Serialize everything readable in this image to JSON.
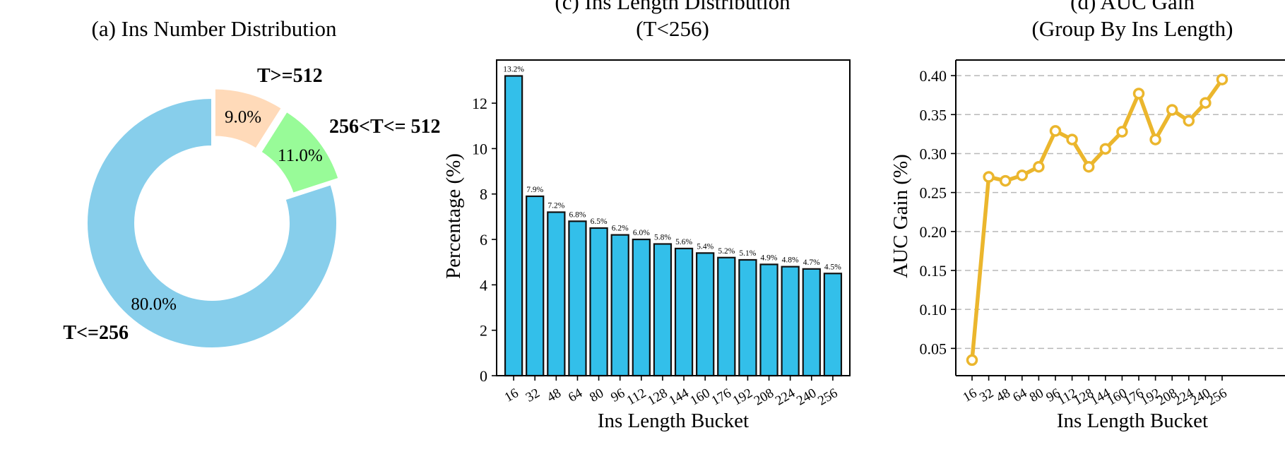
{
  "chart_data": [
    {
      "type": "pie",
      "title": "(a) Ins Number Distribution",
      "donut": true,
      "slices": [
        {
          "label": "T>=512",
          "value": 9.0,
          "pct_label": "9.0%",
          "color": "#FFDAB9"
        },
        {
          "label": "256<T<= 512",
          "value": 11.0,
          "pct_label": "11.0%",
          "color": "#98FB98"
        },
        {
          "label": "T<=256",
          "value": 80.0,
          "pct_label": "80.0%",
          "color": "#87CEEB"
        }
      ]
    },
    {
      "type": "bar",
      "title": [
        "(c) Ins Length Distribution",
        "(T<256)"
      ],
      "xlabel": "Ins Length Bucket",
      "ylabel": "Percentage (%)",
      "categories": [
        "16",
        "32",
        "48",
        "64",
        "80",
        "96",
        "112",
        "128",
        "144",
        "160",
        "176",
        "192",
        "208",
        "224",
        "240",
        "256"
      ],
      "values": [
        13.2,
        7.9,
        7.2,
        6.8,
        6.5,
        6.2,
        6.0,
        5.8,
        5.6,
        5.4,
        5.2,
        5.1,
        4.9,
        4.8,
        4.7,
        4.5
      ],
      "value_labels": [
        "13.2%",
        "7.9%",
        "7.2%",
        "6.8%",
        "6.5%",
        "6.2%",
        "6.0%",
        "5.8%",
        "5.6%",
        "5.4%",
        "5.2%",
        "5.1%",
        "4.9%",
        "4.8%",
        "4.7%",
        "4.5%"
      ],
      "ylim": [
        0,
        13.9
      ],
      "yticks": [
        0,
        2,
        4,
        6,
        8,
        10,
        12
      ],
      "bar_color": "#33BFEA",
      "grid": false
    },
    {
      "type": "line",
      "title": [
        "(d) AUC Gain",
        "(Group By Ins Length)"
      ],
      "xlabel": "Ins Length Bucket",
      "ylabel": "AUC Gain (%)",
      "categories": [
        "16",
        "32",
        "48",
        "64",
        "80",
        "96",
        "112",
        "128",
        "144",
        "160",
        "176",
        "192",
        "208",
        "224",
        "240",
        "256"
      ],
      "values": [
        0.035,
        0.27,
        0.265,
        0.272,
        0.283,
        0.329,
        0.318,
        0.283,
        0.306,
        0.328,
        0.377,
        0.318,
        0.356,
        0.342,
        0.365,
        0.395
      ],
      "ylim": [
        0.015,
        0.42
      ],
      "yticks": [
        0.05,
        0.1,
        0.15,
        0.2,
        0.25,
        0.3,
        0.35,
        0.4
      ],
      "ytick_labels": [
        "0.05",
        "0.10",
        "0.15",
        "0.20",
        "0.25",
        "0.30",
        "0.35",
        "0.40"
      ],
      "line_color": "#EBB62D",
      "grid": "y-dashed"
    }
  ]
}
